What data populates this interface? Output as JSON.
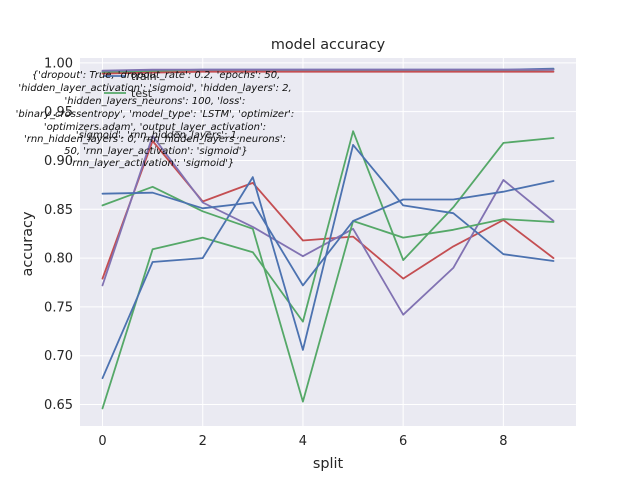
{
  "chart_data": {
    "type": "line",
    "title": "model accuracy",
    "xlabel": "split",
    "ylabel": "accuracy",
    "xlim": [
      -0.45,
      9.45
    ],
    "ylim": [
      0.628,
      1.005
    ],
    "xticks": [
      0,
      2,
      4,
      6,
      8
    ],
    "xtick_labels": [
      "0",
      "2",
      "4",
      "6",
      "8"
    ],
    "yticks": [
      0.65,
      0.7,
      0.75,
      0.8,
      0.85,
      0.9,
      0.95,
      1.0
    ],
    "ytick_labels": [
      "0.65",
      "0.70",
      "0.75",
      "0.80",
      "0.85",
      "0.90",
      "0.95",
      "1.00"
    ],
    "grid": true,
    "legend_placement": "top-left",
    "legend_entries": [
      "train",
      "test"
    ],
    "x": [
      0,
      1,
      2,
      3,
      4,
      5,
      6,
      7,
      8,
      9
    ],
    "series": [
      {
        "color": "#4C72B0",
        "values": [
          0.991,
          0.992,
          0.993,
          0.993,
          0.993,
          0.993,
          0.993,
          0.993,
          0.993,
          0.994
        ]
      },
      {
        "color": "#55A868",
        "values": [
          0.99,
          0.991,
          0.992,
          0.992,
          0.992,
          0.992,
          0.992,
          0.992,
          0.992,
          0.993
        ]
      },
      {
        "color": "#C44E52",
        "values": [
          0.989,
          0.99,
          0.991,
          0.991,
          0.991,
          0.991,
          0.991,
          0.991,
          0.991,
          0.991
        ]
      },
      {
        "color": "#8172B2",
        "values": [
          0.992,
          0.993,
          0.993,
          0.993,
          0.993,
          0.993,
          0.993,
          0.993,
          0.993,
          0.993
        ]
      },
      {
        "color": "#C44E52",
        "values": [
          0.779,
          0.92,
          0.858,
          0.877,
          0.818,
          0.822,
          0.779,
          0.812,
          0.839,
          0.8
        ]
      },
      {
        "color": "#8172B2",
        "values": [
          0.772,
          0.925,
          0.857,
          0.832,
          0.802,
          0.83,
          0.742,
          0.79,
          0.88,
          0.838
        ]
      },
      {
        "color": "#55A868",
        "values": [
          0.646,
          0.809,
          0.821,
          0.806,
          0.735,
          0.93,
          0.798,
          0.852,
          0.918,
          0.923
        ]
      },
      {
        "color": "#4C72B0",
        "values": [
          0.677,
          0.796,
          0.8,
          0.883,
          0.706,
          0.916,
          0.854,
          0.846,
          0.804,
          0.797
        ]
      },
      {
        "color": "#55A868",
        "values": [
          0.854,
          0.873,
          0.848,
          0.83,
          0.653,
          0.838,
          0.821,
          0.829,
          0.84,
          0.837
        ]
      },
      {
        "color": "#4C72B0",
        "values": [
          0.866,
          0.867,
          0.851,
          0.857,
          0.772,
          0.838,
          0.86,
          0.86,
          0.868,
          0.879
        ]
      }
    ],
    "annotation_lines": [
      "{'dropout': True, 'dropout_rate': 0.2, 'epochs': 50,",
      "'hidden_layer_activation': 'sigmoid', 'hidden_layers': 2,",
      "'hidden_layers_neurons': 100, 'loss':",
      "'binary_crossentropy', 'model_type': 'LSTM', 'optimizer':",
      "'optimizers.adam', 'output_layer_activation':",
      "'rnn_hidden_layers': 0, 'rnn_hidden_layers_neurons':",
      "'sigmoid', 'rnn_hidden_layers': 1,",
      "50, 'rnn_layer_activation': 'sigmoid'}",
      "'rnn_layer_activation': 'sigmoid'}"
    ]
  },
  "colors": {
    "background": "#ffffff",
    "plot_area": "#EAEAF2",
    "grid": "#ffffff",
    "text": "#262626"
  }
}
